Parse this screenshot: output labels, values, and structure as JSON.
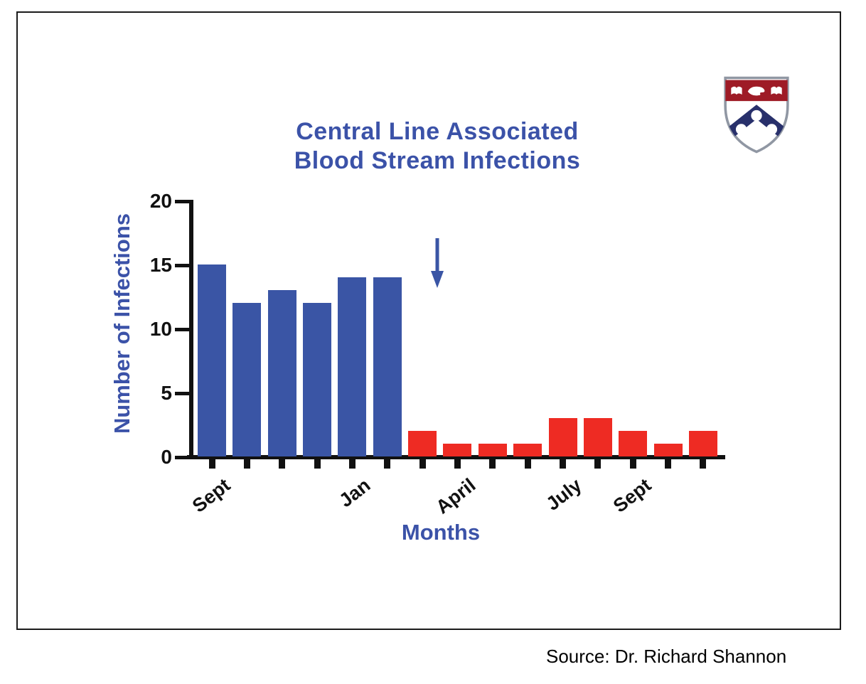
{
  "slide": {
    "title_line1": "Central Line Associated",
    "title_line2": "Blood Stream Infections",
    "source": "Source: Dr. Richard Shannon",
    "logo": "university-of-pennsylvania-shield"
  },
  "chart_data": {
    "type": "bar",
    "title": "Central Line Associated Blood Stream Infections",
    "xlabel": "Months",
    "ylabel": "Number of Infections",
    "ylim": [
      0,
      20
    ],
    "yticks": [
      0,
      5,
      10,
      15,
      20
    ],
    "grid": false,
    "legend": "none",
    "colors": {
      "pre": "#3a55a5",
      "post": "#ee2b23"
    },
    "bars": [
      {
        "value": 15,
        "group": "pre"
      },
      {
        "value": 12,
        "group": "pre"
      },
      {
        "value": 13,
        "group": "pre"
      },
      {
        "value": 12,
        "group": "pre"
      },
      {
        "value": 14,
        "group": "pre"
      },
      {
        "value": 14,
        "group": "pre"
      },
      {
        "value": 2,
        "group": "post"
      },
      {
        "value": 1,
        "group": "post"
      },
      {
        "value": 1,
        "group": "post"
      },
      {
        "value": 1,
        "group": "post"
      },
      {
        "value": 3,
        "group": "post"
      },
      {
        "value": 3,
        "group": "post"
      },
      {
        "value": 2,
        "group": "post"
      },
      {
        "value": 1,
        "group": "post"
      },
      {
        "value": 2,
        "group": "post"
      }
    ],
    "x_tick_labels": [
      {
        "bar_index": 0,
        "label": "Sept"
      },
      {
        "bar_index": 4,
        "label": "Jan"
      },
      {
        "bar_index": 7,
        "label": "April"
      },
      {
        "bar_index": 10,
        "label": "July"
      },
      {
        "bar_index": 12,
        "label": "Sept"
      }
    ],
    "annotation": {
      "type": "down-arrow",
      "color": "#3a55a5",
      "after_bar_index": 6
    }
  }
}
